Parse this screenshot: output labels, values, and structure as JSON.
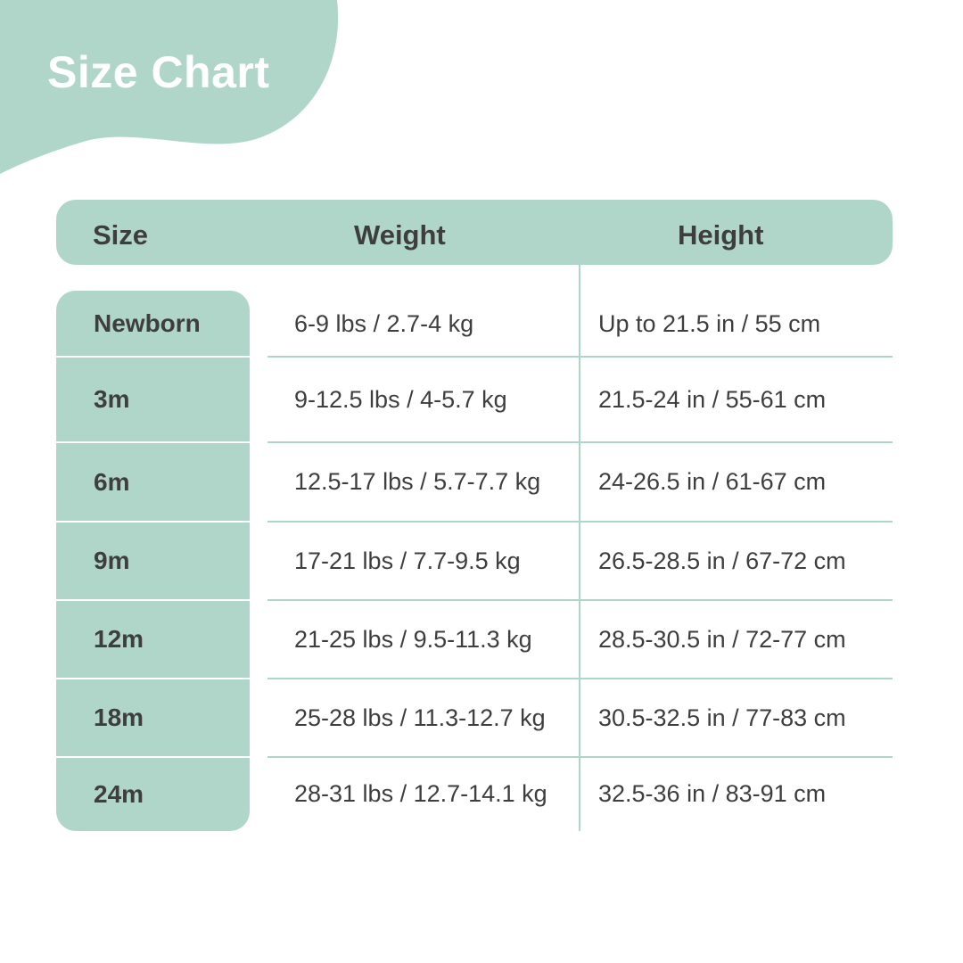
{
  "title": "Size Chart",
  "accent_color": "#b0d6ca",
  "columns": [
    "Size",
    "Weight",
    "Height"
  ],
  "rows": [
    {
      "size": "Newborn",
      "weight": "6-9 lbs / 2.7-4  kg",
      "height": "Up to 21.5 in / 55 cm"
    },
    {
      "size": "3m",
      "weight": "9-12.5 lbs / 4-5.7  kg",
      "height": "21.5-24 in / 55-61 cm"
    },
    {
      "size": "6m",
      "weight": "12.5-17 lbs / 5.7-7.7  kg",
      "height": "24-26.5 in / 61-67 cm"
    },
    {
      "size": "9m",
      "weight": "17-21 lbs / 7.7-9.5  kg",
      "height": "26.5-28.5 in / 67-72 cm"
    },
    {
      "size": "12m",
      "weight": "21-25 lbs / 9.5-11.3 kg",
      "height": "28.5-30.5 in / 72-77 cm"
    },
    {
      "size": "18m",
      "weight": "25-28 lbs / 11.3-12.7 kg",
      "height": "30.5-32.5 in / 77-83 cm"
    },
    {
      "size": "24m",
      "weight": "28-31 lbs / 12.7-14.1 kg",
      "height": "32.5-36 in / 83-91 cm"
    }
  ]
}
